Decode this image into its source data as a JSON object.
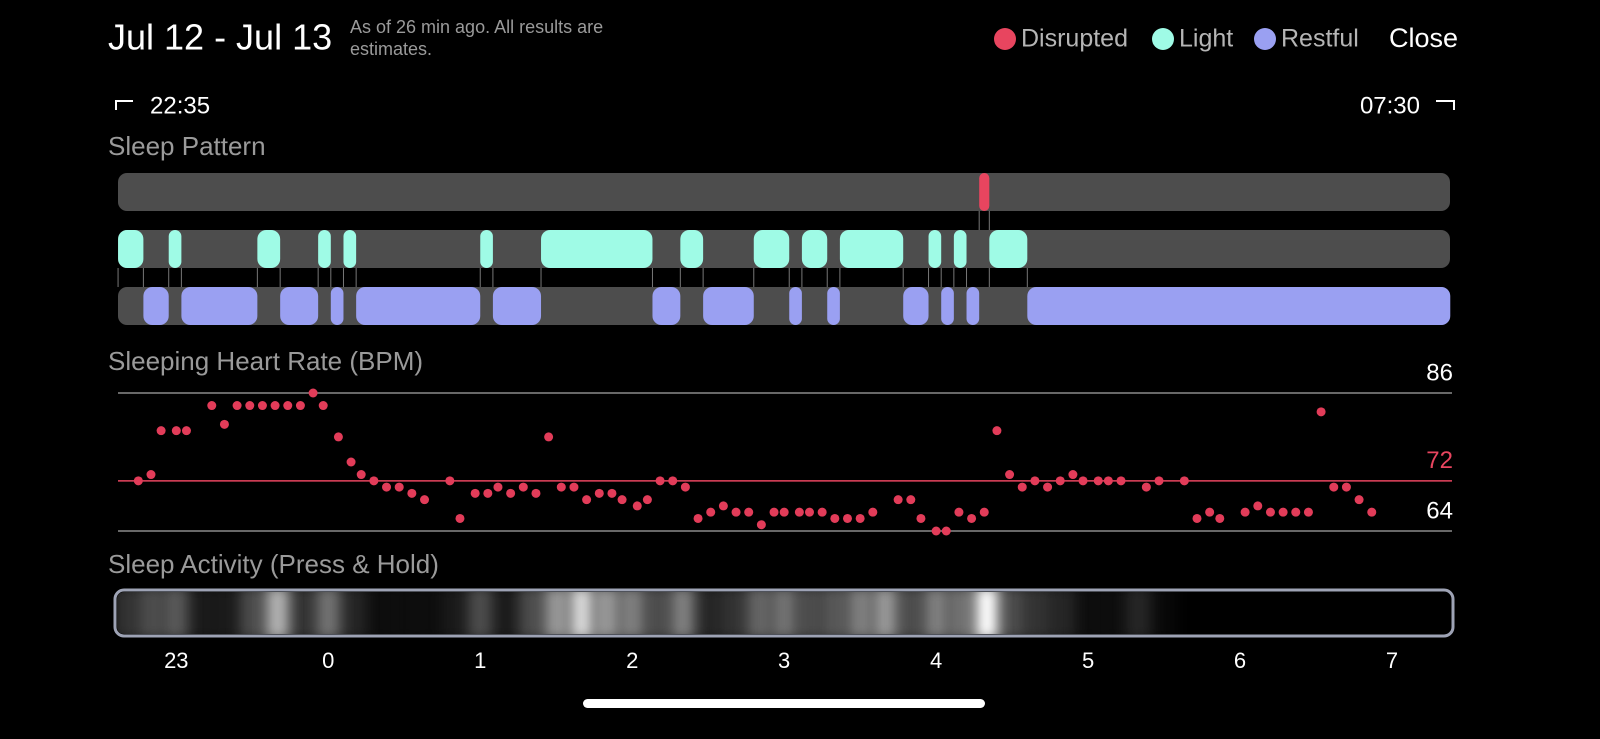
{
  "header": {
    "title": "Jul 12 - Jul 13",
    "subtitle": "As of 26 min ago. All results are estimates.",
    "close": "Close",
    "start_time": "22:35",
    "end_time": "07:30"
  },
  "sleep_pattern": {
    "title": "Sleep Pattern",
    "rows": [
      {
        "name": "Disrupted",
        "color": "#e8455f",
        "segments": [
          [
            257,
            261
          ]
        ]
      },
      {
        "name": "Light",
        "color": "#9ffbe6",
        "segments": [
          [
            -83,
            -73
          ],
          [
            -63,
            -58
          ],
          [
            -28,
            -19
          ],
          [
            -4,
            1
          ],
          [
            6,
            11
          ],
          [
            60,
            65
          ],
          [
            84,
            128
          ],
          [
            139,
            148
          ],
          [
            168,
            182
          ],
          [
            187,
            197
          ],
          [
            202,
            227
          ],
          [
            237,
            242
          ],
          [
            247,
            252
          ],
          [
            261,
            276
          ]
        ]
      },
      {
        "name": "Restful",
        "color": "#9aa0f2",
        "segments": [
          [
            -73,
            -63
          ],
          [
            -58,
            -28
          ],
          [
            -19,
            -4
          ],
          [
            1,
            6
          ],
          [
            11,
            60
          ],
          [
            65,
            84
          ],
          [
            128,
            139
          ],
          [
            148,
            168
          ],
          [
            182,
            187
          ],
          [
            197,
            202
          ],
          [
            227,
            237
          ],
          [
            242,
            247
          ],
          [
            252,
            257
          ],
          [
            276,
            443
          ]
        ]
      }
    ]
  },
  "chart_data": {
    "type": "scatter",
    "title": "Sleeping Heart Rate (BPM)",
    "color": "#e23c59",
    "x": [
      -75,
      -70,
      -66,
      -60,
      -56,
      -46,
      -41,
      -36,
      -31,
      -26,
      -21,
      -16,
      -11,
      -6,
      -2,
      4,
      9,
      13,
      18,
      23,
      28,
      33,
      38,
      48,
      52,
      58,
      63,
      67,
      72,
      77,
      82,
      87,
      92,
      97,
      102,
      107,
      112,
      116,
      122,
      126,
      131,
      136,
      141,
      146,
      151,
      156,
      161,
      166,
      171,
      176,
      180,
      186,
      190,
      195,
      200,
      205,
      210,
      215,
      225,
      230,
      234,
      240,
      244,
      249,
      254,
      259,
      264,
      269,
      274,
      279,
      284,
      289,
      294,
      298,
      304,
      308,
      313,
      323,
      328,
      338,
      343,
      348,
      352,
      362,
      367,
      372,
      377,
      382,
      387,
      392,
      397,
      402,
      407,
      412
    ],
    "values": [
      72,
      73,
      80,
      80,
      80,
      84,
      81,
      84,
      84,
      84,
      84,
      84,
      84,
      86,
      84,
      79,
      75,
      73,
      72,
      71,
      71,
      70,
      69,
      72,
      66,
      70,
      70,
      71,
      70,
      71,
      70,
      79,
      71,
      71,
      69,
      70,
      70,
      69,
      68,
      69,
      72,
      72,
      71,
      66,
      67,
      68,
      67,
      67,
      65,
      67,
      67,
      67,
      67,
      67,
      66,
      66,
      66,
      67,
      69,
      69,
      66,
      64,
      64,
      67,
      66,
      67,
      80,
      73,
      71,
      72,
      71,
      72,
      73,
      72,
      72,
      72,
      72,
      71,
      72,
      72,
      66,
      67,
      66,
      67,
      68,
      67,
      67,
      67,
      67,
      83,
      71,
      71,
      69,
      67
    ],
    "xlim": [
      -85,
      450
    ],
    "xticks": [
      {
        "value": -60,
        "label": "23"
      },
      0,
      {
        "value": 60,
        "label": "1"
      },
      {
        "value": 120,
        "label": "2"
      },
      {
        "value": 180,
        "label": "3"
      },
      {
        "value": 240,
        "label": "4"
      },
      {
        "value": 300,
        "label": "5"
      },
      {
        "value": 360,
        "label": "6"
      },
      {
        "value": 420,
        "label": "7"
      }
    ],
    "ylim": [
      64,
      86
    ],
    "yticks": [
      64,
      72,
      86
    ],
    "ytick_colors": [
      "#ffffff",
      "#e8455f",
      "#ffffff"
    ],
    "grid_colors": [
      "#8a8a8a",
      "#e8455f",
      "#8a8a8a"
    ]
  },
  "sleep_activity": {
    "title": "Sleep Activity (Press & Hold)",
    "x": [
      -80,
      -70,
      -60,
      -50,
      -40,
      -30,
      -20,
      -10,
      0,
      10,
      20,
      30,
      40,
      50,
      60,
      70,
      80,
      90,
      100,
      110,
      120,
      130,
      140,
      150,
      160,
      170,
      180,
      190,
      200,
      210,
      220,
      230,
      240,
      250,
      260,
      270,
      280,
      290,
      300,
      310,
      320,
      330,
      340,
      350,
      360,
      370,
      380,
      390,
      400,
      410,
      420,
      430,
      440
    ],
    "values": [
      0.2,
      0.3,
      0.35,
      0.1,
      0.1,
      0.3,
      0.7,
      0.2,
      0.45,
      0.15,
      0.05,
      0.05,
      0.05,
      0.1,
      0.3,
      0.1,
      0.3,
      0.6,
      0.85,
      0.6,
      0.5,
      0.3,
      0.5,
      0.15,
      0.2,
      0.4,
      0.45,
      0.3,
      0.35,
      0.5,
      0.6,
      0.3,
      0.5,
      0.45,
      1.0,
      0.3,
      0.2,
      0.15,
      0.05,
      0.05,
      0.15,
      0.03,
      0,
      0,
      0,
      0,
      0,
      0,
      0,
      0,
      0,
      0,
      0
    ]
  }
}
